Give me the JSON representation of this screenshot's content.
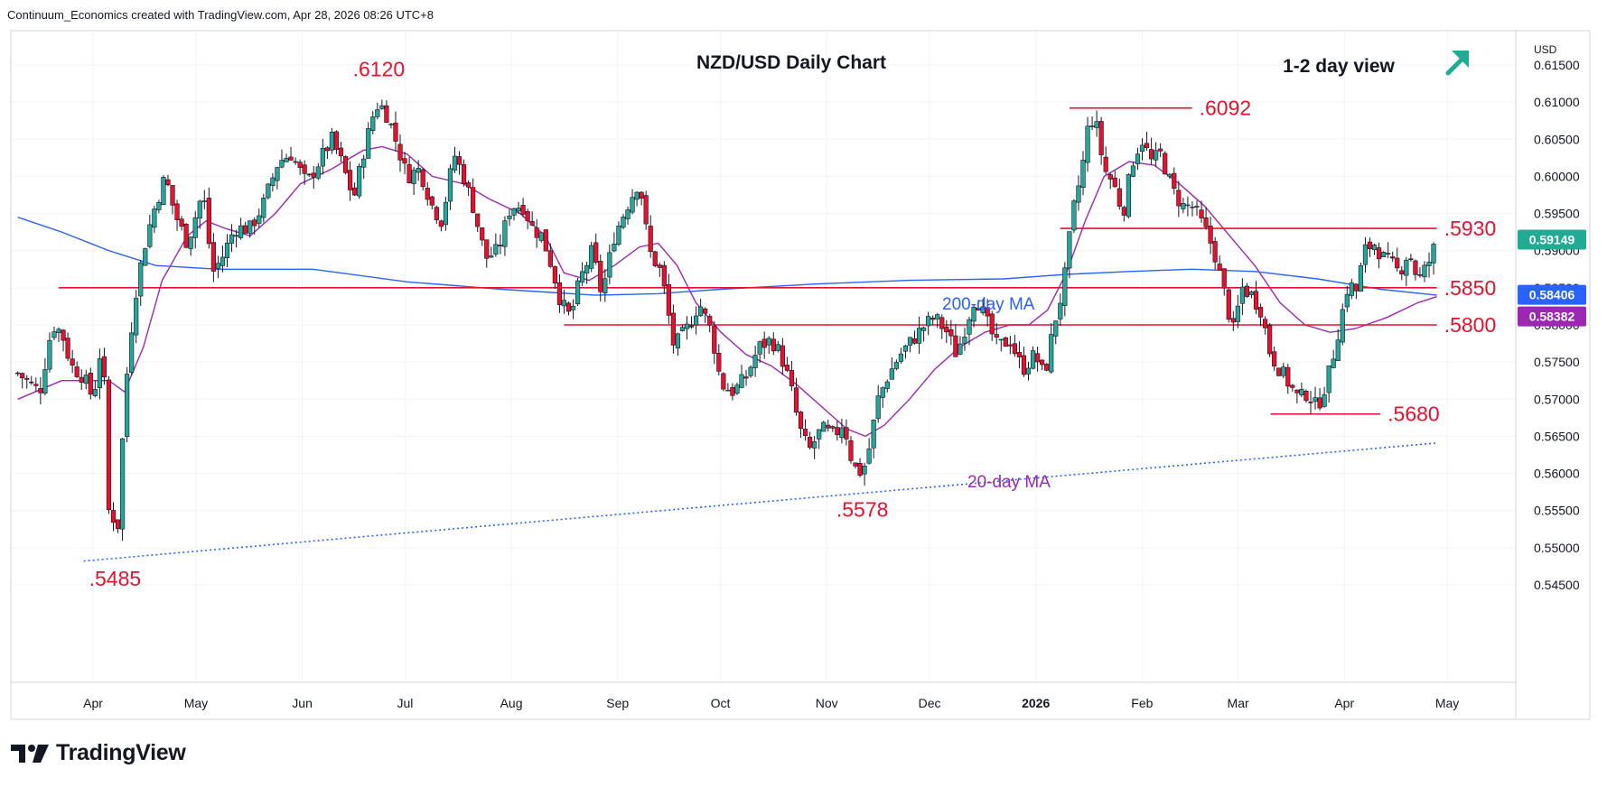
{
  "header": {
    "attribution": "Continuum_Economics created with TradingView.com, Apr 28, 2026 08:26 UTC+8"
  },
  "footer": {
    "brand": "TradingView"
  },
  "chart_data": {
    "type": "candlestick",
    "title": "NZD/USD Daily Chart",
    "view_label": "1-2 day view",
    "view_direction_icon": "arrow-up-right-icon",
    "currency_label": "USD",
    "ylim": [
      0.5435,
      0.6165
    ],
    "grid": true,
    "y_ticks": [
      "0.61500",
      "0.61000",
      "0.60500",
      "0.60000",
      "0.59500",
      "0.59000",
      "0.58500",
      "0.58000",
      "0.57500",
      "0.57000",
      "0.56500",
      "0.56000",
      "0.55500",
      "0.55000",
      "0.54500"
    ],
    "y_tick_values": [
      0.615,
      0.61,
      0.605,
      0.6,
      0.595,
      0.59,
      0.585,
      0.58,
      0.575,
      0.57,
      0.565,
      0.56,
      0.555,
      0.55,
      0.545
    ],
    "x_ticks": [
      {
        "label": "Apr",
        "day": 0
      },
      {
        "label": "May",
        "day": 30
      },
      {
        "label": "Jun",
        "day": 61
      },
      {
        "label": "Jul",
        "day": 91
      },
      {
        "label": "Aug",
        "day": 122
      },
      {
        "label": "Sep",
        "day": 153
      },
      {
        "label": "Oct",
        "day": 183
      },
      {
        "label": "Nov",
        "day": 214
      },
      {
        "label": "Dec",
        "day": 244
      },
      {
        "label": "2026",
        "day": 275
      },
      {
        "label": "Feb",
        "day": 306
      },
      {
        "label": "Mar",
        "day": 334
      },
      {
        "label": "Apr",
        "day": 365
      },
      {
        "label": "May",
        "day": 395
      }
    ],
    "x_range_days": [
      -24,
      415
    ],
    "last_day": 392,
    "price_path": [
      [
        -24,
        0.5735
      ],
      [
        -17,
        0.571
      ],
      [
        -13,
        0.58
      ],
      [
        -10,
        0.579
      ],
      [
        -7,
        0.5745
      ],
      [
        -3,
        0.573
      ],
      [
        0,
        0.57
      ],
      [
        3,
        0.5785
      ],
      [
        5,
        0.555
      ],
      [
        8,
        0.553
      ],
      [
        10,
        0.57
      ],
      [
        13,
        0.583
      ],
      [
        16,
        0.59
      ],
      [
        19,
        0.595
      ],
      [
        23,
        0.6
      ],
      [
        26,
        0.595
      ],
      [
        30,
        0.591
      ],
      [
        35,
        0.598
      ],
      [
        38,
        0.587
      ],
      [
        41,
        0.589
      ],
      [
        45,
        0.593
      ],
      [
        50,
        0.593
      ],
      [
        54,
        0.596
      ],
      [
        59,
        0.602
      ],
      [
        63,
        0.603
      ],
      [
        68,
        0.599
      ],
      [
        72,
        0.602
      ],
      [
        76,
        0.605
      ],
      [
        79,
        0.602
      ],
      [
        83,
        0.597
      ],
      [
        86,
        0.603
      ],
      [
        89,
        0.608
      ],
      [
        91,
        0.61
      ],
      [
        94,
        0.608
      ],
      [
        97,
        0.604
      ],
      [
        100,
        0.6
      ],
      [
        104,
        0.601
      ],
      [
        108,
        0.596
      ],
      [
        111,
        0.594
      ],
      [
        115,
        0.603
      ],
      [
        118,
        0.6
      ],
      [
        121,
        0.596
      ],
      [
        125,
        0.589
      ],
      [
        129,
        0.59
      ],
      [
        133,
        0.596
      ],
      [
        137,
        0.596
      ],
      [
        140,
        0.593
      ],
      [
        143,
        0.592
      ],
      [
        146,
        0.588
      ],
      [
        149,
        0.583
      ],
      [
        152,
        0.581
      ],
      [
        155,
        0.586
      ],
      [
        159,
        0.59
      ],
      [
        162,
        0.584
      ],
      [
        166,
        0.592
      ],
      [
        170,
        0.596
      ],
      [
        174,
        0.5995
      ],
      [
        177,
        0.59
      ],
      [
        181,
        0.587
      ],
      [
        185,
        0.577
      ],
      [
        190,
        0.58
      ],
      [
        193,
        0.583
      ],
      [
        197,
        0.579
      ],
      [
        200,
        0.572
      ],
      [
        204,
        0.571
      ],
      [
        208,
        0.573
      ],
      [
        212,
        0.577
      ],
      [
        216,
        0.578
      ],
      [
        219,
        0.576
      ],
      [
        222,
        0.572
      ],
      [
        225,
        0.566
      ],
      [
        228,
        0.563
      ],
      [
        232,
        0.566
      ],
      [
        236,
        0.565
      ],
      [
        239,
        0.567
      ],
      [
        242,
        0.561
      ],
      [
        245,
        0.56
      ],
      [
        247,
        0.563
      ],
      [
        250,
        0.57
      ],
      [
        253,
        0.573
      ],
      [
        257,
        0.576
      ],
      [
        261,
        0.578
      ],
      [
        265,
        0.58
      ],
      [
        268,
        0.581
      ],
      [
        272,
        0.579
      ],
      [
        275,
        0.576
      ],
      [
        278,
        0.58
      ],
      [
        281,
        0.584
      ],
      [
        284,
        0.581
      ],
      [
        288,
        0.577
      ],
      [
        292,
        0.578
      ],
      [
        296,
        0.574
      ],
      [
        300,
        0.576
      ],
      [
        303,
        0.573
      ],
      [
        306,
        0.58
      ],
      [
        309,
        0.585
      ],
      [
        312,
        0.595
      ],
      [
        315,
        0.601
      ],
      [
        317,
        0.607
      ],
      [
        319,
        0.608
      ],
      [
        322,
        0.601
      ],
      [
        325,
        0.599
      ],
      [
        328,
        0.595
      ],
      [
        331,
        0.602
      ],
      [
        334,
        0.605
      ],
      [
        337,
        0.602
      ],
      [
        340,
        0.603
      ],
      [
        344,
        0.598
      ],
      [
        347,
        0.596
      ],
      [
        350,
        0.596
      ],
      [
        354,
        0.593
      ],
      [
        357,
        0.59
      ],
      [
        361,
        0.583
      ],
      [
        363,
        0.579
      ],
      [
        366,
        0.585
      ],
      [
        369,
        0.584
      ],
      [
        372,
        0.582
      ],
      [
        375,
        0.576
      ],
      [
        378,
        0.574
      ],
      [
        381,
        0.572
      ],
      [
        384,
        0.57
      ],
      [
        387,
        0.571
      ],
      [
        389,
        0.569
      ],
      [
        391,
        0.57
      ],
      [
        394,
        0.574
      ],
      [
        397,
        0.58
      ],
      [
        400,
        0.586
      ],
      [
        402,
        0.584
      ],
      [
        405,
        0.59
      ],
      [
        408,
        0.591
      ],
      [
        411,
        0.589
      ],
      [
        414,
        0.588
      ],
      [
        416,
        0.587
      ],
      [
        419,
        0.59
      ],
      [
        422,
        0.586
      ],
      [
        425,
        0.588
      ],
      [
        428,
        0.5914
      ]
    ],
    "ma200_path": [
      [
        -24,
        0.5945
      ],
      [
        -10,
        0.5925
      ],
      [
        5,
        0.59
      ],
      [
        20,
        0.588
      ],
      [
        40,
        0.5875
      ],
      [
        70,
        0.5875
      ],
      [
        100,
        0.5858
      ],
      [
        130,
        0.5848
      ],
      [
        160,
        0.584
      ],
      [
        180,
        0.5842
      ],
      [
        200,
        0.5848
      ],
      [
        230,
        0.5855
      ],
      [
        260,
        0.586
      ],
      [
        290,
        0.5862
      ],
      [
        310,
        0.5868
      ],
      [
        330,
        0.5872
      ],
      [
        350,
        0.5875
      ],
      [
        370,
        0.5872
      ],
      [
        390,
        0.5862
      ],
      [
        410,
        0.5848
      ],
      [
        428,
        0.584
      ]
    ],
    "ma20_path": [
      [
        -24,
        0.57
      ],
      [
        -10,
        0.5725
      ],
      [
        0,
        0.5725
      ],
      [
        5,
        0.5725
      ],
      [
        10,
        0.571
      ],
      [
        16,
        0.577
      ],
      [
        22,
        0.586
      ],
      [
        30,
        0.592
      ],
      [
        36,
        0.594
      ],
      [
        42,
        0.593
      ],
      [
        50,
        0.592
      ],
      [
        58,
        0.595
      ],
      [
        66,
        0.599
      ],
      [
        76,
        0.601
      ],
      [
        86,
        0.6035
      ],
      [
        92,
        0.604
      ],
      [
        100,
        0.603
      ],
      [
        108,
        0.6
      ],
      [
        118,
        0.599
      ],
      [
        126,
        0.597
      ],
      [
        136,
        0.595
      ],
      [
        144,
        0.592
      ],
      [
        150,
        0.587
      ],
      [
        158,
        0.586
      ],
      [
        166,
        0.588
      ],
      [
        174,
        0.5905
      ],
      [
        180,
        0.591
      ],
      [
        186,
        0.588
      ],
      [
        192,
        0.583
      ],
      [
        200,
        0.579
      ],
      [
        208,
        0.576
      ],
      [
        216,
        0.5745
      ],
      [
        224,
        0.572
      ],
      [
        232,
        0.569
      ],
      [
        240,
        0.566
      ],
      [
        246,
        0.565
      ],
      [
        252,
        0.5665
      ],
      [
        260,
        0.57
      ],
      [
        268,
        0.574
      ],
      [
        276,
        0.577
      ],
      [
        284,
        0.579
      ],
      [
        292,
        0.58
      ],
      [
        298,
        0.58
      ],
      [
        304,
        0.582
      ],
      [
        310,
        0.587
      ],
      [
        316,
        0.594
      ],
      [
        322,
        0.6
      ],
      [
        330,
        0.602
      ],
      [
        338,
        0.6015
      ],
      [
        346,
        0.599
      ],
      [
        354,
        0.596
      ],
      [
        362,
        0.592
      ],
      [
        370,
        0.588
      ],
      [
        378,
        0.583
      ],
      [
        386,
        0.58
      ],
      [
        394,
        0.579
      ],
      [
        402,
        0.5795
      ],
      [
        412,
        0.581
      ],
      [
        422,
        0.583
      ],
      [
        428,
        0.5838
      ]
    ],
    "levels": [
      {
        "label": ".5930",
        "value": 0.593,
        "from_day": 308,
        "to_day": 428
      },
      {
        "label": ".5850",
        "value": 0.585,
        "from_day": -11,
        "to_day": 428
      },
      {
        "label": ".5800",
        "value": 0.58,
        "from_day": 150,
        "to_day": 428
      },
      {
        "label": ".5680",
        "value": 0.568,
        "from_day": 375,
        "to_day": 410
      },
      {
        "label": ".6092",
        "value": 0.6092,
        "from_day": 311,
        "to_day": 350
      }
    ],
    "extremes": [
      {
        "label": ".6120",
        "value": 0.612,
        "day": 91
      },
      {
        "label": ".5578",
        "value": 0.5578,
        "day": 245
      },
      {
        "label": ".5485",
        "value": 0.5485,
        "day": 7
      }
    ],
    "trendline": {
      "start": [
        -3,
        0.5482
      ],
      "end": [
        428,
        0.5641
      ]
    },
    "series_labels": {
      "ma200": "200-day MA",
      "ma20": "20-day MA"
    },
    "last_prices": [
      {
        "value": "0.59149",
        "y": 0.59149,
        "color": "#22ab94"
      },
      {
        "value": "0.58406",
        "y": 0.58406,
        "color": "#2962ff"
      },
      {
        "value": "0.58382",
        "y": 0.58382,
        "color": "#9c27b0"
      }
    ],
    "colors": {
      "up": "#26a69a",
      "down": "#e8112d",
      "ma200": "#2962ff",
      "ma20": "#9c27b0",
      "level": "#e8112d",
      "trend": "#2962ff"
    }
  }
}
